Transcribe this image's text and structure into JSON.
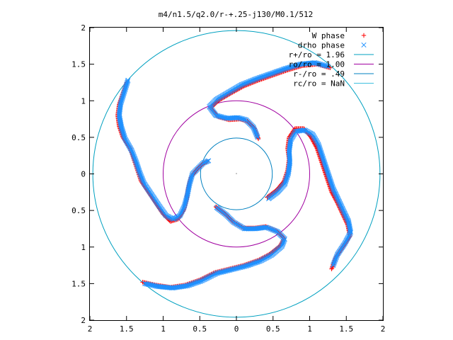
{
  "chart_data": {
    "type": "scatter",
    "title": "m4/n1.5/q2.0/r-+.25-j130/M0.1/512",
    "xlim": [
      -2,
      2
    ],
    "ylim": [
      -2,
      2
    ],
    "x_ticks": [
      -2,
      -1.5,
      -1,
      -0.5,
      0,
      0.5,
      1,
      1.5,
      2
    ],
    "y_ticks": [
      -2,
      -1.5,
      -1,
      -0.5,
      0,
      0.5,
      1,
      1.5,
      2
    ],
    "x_tick_labels": [
      "2",
      "1.5",
      "1",
      "0.5",
      "0",
      "0.5",
      "1",
      "1.5",
      "2"
    ],
    "y_tick_labels": [
      "2",
      "1.5",
      "1",
      "0.5",
      "0",
      "0.5",
      "1",
      "1.5",
      "2"
    ],
    "grid": false,
    "legend_position": "top-right",
    "series": [
      {
        "name": "W phase",
        "marker": "+",
        "color": "#ff0000",
        "arms": [
          [
            [
              -1.5,
              1.25
            ],
            [
              -1.55,
              1.1
            ],
            [
              -1.6,
              0.95
            ],
            [
              -1.62,
              0.8
            ],
            [
              -1.6,
              0.65
            ],
            [
              -1.55,
              0.5
            ],
            [
              -1.45,
              0.35
            ],
            [
              -1.4,
              0.2
            ],
            [
              -1.35,
              0.05
            ],
            [
              -1.3,
              -0.1
            ],
            [
              -1.2,
              -0.25
            ],
            [
              -1.1,
              -0.4
            ],
            [
              -1.0,
              -0.55
            ],
            [
              -0.9,
              -0.65
            ],
            [
              -0.8,
              -0.62
            ],
            [
              -0.72,
              -0.5
            ],
            [
              -0.68,
              -0.35
            ],
            [
              -0.66,
              -0.2
            ],
            [
              -0.62,
              -0.05
            ],
            [
              -0.55,
              0.05
            ],
            [
              -0.48,
              0.12
            ],
            [
              -0.4,
              0.17
            ]
          ],
          [
            [
              1.3,
              -1.3
            ],
            [
              1.35,
              -1.15
            ],
            [
              1.45,
              -1.0
            ],
            [
              1.55,
              -0.85
            ],
            [
              1.52,
              -0.7
            ],
            [
              1.45,
              -0.55
            ],
            [
              1.38,
              -0.4
            ],
            [
              1.3,
              -0.25
            ],
            [
              1.25,
              -0.1
            ],
            [
              1.2,
              0.05
            ],
            [
              1.15,
              0.2
            ],
            [
              1.1,
              0.35
            ],
            [
              1.02,
              0.5
            ],
            [
              0.92,
              0.62
            ],
            [
              0.8,
              0.62
            ],
            [
              0.72,
              0.5
            ],
            [
              0.7,
              0.35
            ],
            [
              0.72,
              0.2
            ],
            [
              0.7,
              0.05
            ],
            [
              0.65,
              -0.1
            ],
            [
              0.55,
              -0.22
            ],
            [
              0.42,
              -0.32
            ]
          ],
          [
            [
              1.28,
              1.45
            ],
            [
              1.1,
              1.5
            ],
            [
              0.9,
              1.48
            ],
            [
              0.7,
              1.42
            ],
            [
              0.5,
              1.35
            ],
            [
              0.3,
              1.28
            ],
            [
              0.1,
              1.2
            ],
            [
              -0.08,
              1.1
            ],
            [
              -0.25,
              1.0
            ],
            [
              -0.35,
              0.9
            ],
            [
              -0.25,
              0.78
            ],
            [
              -0.1,
              0.74
            ],
            [
              0.05,
              0.75
            ],
            [
              0.15,
              0.72
            ],
            [
              0.25,
              0.62
            ],
            [
              0.3,
              0.48
            ]
          ],
          [
            [
              -1.28,
              -1.48
            ],
            [
              -1.1,
              -1.52
            ],
            [
              -0.9,
              -1.55
            ],
            [
              -0.7,
              -1.52
            ],
            [
              -0.5,
              -1.45
            ],
            [
              -0.3,
              -1.35
            ],
            [
              -0.1,
              -1.3
            ],
            [
              0.1,
              -1.25
            ],
            [
              0.3,
              -1.18
            ],
            [
              0.45,
              -1.1
            ],
            [
              0.6,
              -0.98
            ],
            [
              0.65,
              -0.88
            ],
            [
              0.55,
              -0.78
            ],
            [
              0.4,
              -0.72
            ],
            [
              0.25,
              -0.74
            ],
            [
              0.1,
              -0.74
            ],
            [
              -0.05,
              -0.65
            ],
            [
              -0.15,
              -0.55
            ],
            [
              -0.28,
              -0.45
            ]
          ]
        ]
      },
      {
        "name": "drho phase",
        "marker": "x",
        "color": "#1e90ff",
        "arms": [
          [
            [
              -1.48,
              1.28
            ],
            [
              -1.53,
              1.12
            ],
            [
              -1.58,
              0.96
            ],
            [
              -1.6,
              0.8
            ],
            [
              -1.57,
              0.64
            ],
            [
              -1.52,
              0.48
            ],
            [
              -1.43,
              0.32
            ],
            [
              -1.37,
              0.17
            ],
            [
              -1.32,
              0.02
            ],
            [
              -1.26,
              -0.13
            ],
            [
              -1.16,
              -0.28
            ],
            [
              -1.06,
              -0.43
            ],
            [
              -0.96,
              -0.57
            ],
            [
              -0.86,
              -0.62
            ],
            [
              -0.77,
              -0.57
            ],
            [
              -0.71,
              -0.44
            ],
            [
              -0.67,
              -0.29
            ],
            [
              -0.64,
              -0.14
            ],
            [
              -0.6,
              0.0
            ],
            [
              -0.52,
              0.08
            ],
            [
              -0.45,
              0.15
            ],
            [
              -0.38,
              0.18
            ]
          ],
          [
            [
              1.32,
              -1.25
            ],
            [
              1.38,
              -1.1
            ],
            [
              1.48,
              -0.95
            ],
            [
              1.56,
              -0.8
            ],
            [
              1.53,
              -0.65
            ],
            [
              1.46,
              -0.5
            ],
            [
              1.39,
              -0.35
            ],
            [
              1.32,
              -0.2
            ],
            [
              1.27,
              -0.05
            ],
            [
              1.22,
              0.1
            ],
            [
              1.17,
              0.25
            ],
            [
              1.12,
              0.4
            ],
            [
              1.04,
              0.54
            ],
            [
              0.93,
              0.6
            ],
            [
              0.81,
              0.58
            ],
            [
              0.74,
              0.46
            ],
            [
              0.72,
              0.31
            ],
            [
              0.73,
              0.16
            ],
            [
              0.71,
              0.01
            ],
            [
              0.66,
              -0.14
            ],
            [
              0.56,
              -0.25
            ],
            [
              0.44,
              -0.34
            ]
          ],
          [
            [
              1.25,
              1.47
            ],
            [
              1.07,
              1.52
            ],
            [
              0.87,
              1.5
            ],
            [
              0.67,
              1.44
            ],
            [
              0.47,
              1.37
            ],
            [
              0.27,
              1.3
            ],
            [
              0.07,
              1.22
            ],
            [
              -0.1,
              1.12
            ],
            [
              -0.27,
              1.02
            ],
            [
              -0.37,
              0.92
            ],
            [
              -0.28,
              0.8
            ],
            [
              -0.13,
              0.76
            ],
            [
              0.02,
              0.77
            ],
            [
              0.13,
              0.74
            ],
            [
              0.23,
              0.64
            ],
            [
              0.29,
              0.5
            ]
          ],
          [
            [
              -1.25,
              -1.5
            ],
            [
              -1.07,
              -1.54
            ],
            [
              -0.87,
              -1.56
            ],
            [
              -0.67,
              -1.53
            ],
            [
              -0.47,
              -1.46
            ],
            [
              -0.27,
              -1.36
            ],
            [
              -0.07,
              -1.31
            ],
            [
              0.13,
              -1.26
            ],
            [
              0.33,
              -1.19
            ],
            [
              0.48,
              -1.11
            ],
            [
              0.62,
              -0.99
            ],
            [
              0.66,
              -0.89
            ],
            [
              0.56,
              -0.79
            ],
            [
              0.41,
              -0.73
            ],
            [
              0.26,
              -0.75
            ],
            [
              0.11,
              -0.75
            ],
            [
              -0.04,
              -0.66
            ],
            [
              -0.14,
              -0.56
            ],
            [
              -0.27,
              -0.46
            ]
          ]
        ]
      },
      {
        "name": "r+/ro = 1.96",
        "type": "circle",
        "radius": 1.96,
        "color": "#00a0c0"
      },
      {
        "name": "ro/ro = 1.00",
        "type": "circle",
        "radius": 1.0,
        "color": "#a000a0"
      },
      {
        "name": "r-/ro = .49",
        "type": "circle",
        "radius": 0.49,
        "color": "#0080c0"
      },
      {
        "name": "rc/ro = NaN",
        "type": "circle",
        "radius": null,
        "color": "#40c0e0"
      }
    ]
  }
}
